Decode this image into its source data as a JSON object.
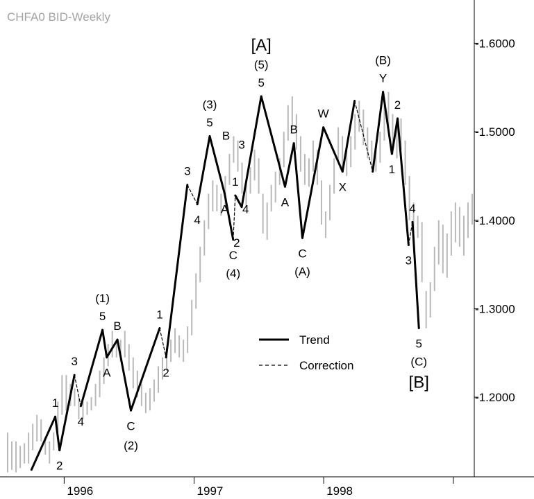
{
  "chart_data": {
    "type": "line",
    "title": "CHFA0 BID-Weekly",
    "xlabel": "",
    "ylabel": "",
    "x_axis": {
      "type": "date",
      "range": [
        "1995-07-20",
        "1999-03-01"
      ],
      "ticks": [
        {
          "label": "1996",
          "date": "1996-01-01"
        },
        {
          "label": "1997",
          "date": "1997-01-01"
        },
        {
          "label": "1998",
          "date": "1998-01-01"
        },
        {
          "label": "",
          "date": "1999-01-01"
        }
      ]
    },
    "y_axis": {
      "side": "right",
      "range": [
        1.11,
        1.645
      ],
      "ticks": [
        1.2,
        1.3,
        1.4,
        1.5,
        1.6
      ],
      "tick_labels": [
        "1.2000",
        "1.3000",
        "1.4000",
        "1.5000",
        "1.6000"
      ]
    },
    "grid": false,
    "legend": {
      "position": "bottom-center",
      "entries": [
        {
          "name": "Trend",
          "style": "solid"
        },
        {
          "name": "Correction",
          "style": "dashed"
        }
      ]
    },
    "colors": {
      "price_bars": "#b9b9b9",
      "wave_lines": "#000000",
      "text": "#000000",
      "title": "#a3a3a3"
    },
    "series": [
      {
        "name": "Trend",
        "style": "solid",
        "segments": [
          [
            [
              "1995-10-01",
              1.118
            ],
            [
              "1995-12-07",
              1.178
            ]
          ],
          [
            [
              "1995-12-07",
              1.178
            ],
            [
              "1995-12-19",
              1.14
            ]
          ],
          [
            [
              "1995-12-19",
              1.14
            ],
            [
              "1996-01-30",
              1.225
            ]
          ],
          [
            [
              "1996-02-17",
              1.19
            ],
            [
              "1996-04-18",
              1.276
            ]
          ],
          [
            [
              "1996-04-18",
              1.276
            ],
            [
              "1996-04-30",
              1.245
            ]
          ],
          [
            [
              "1996-04-30",
              1.245
            ],
            [
              "1996-05-30",
              1.265
            ]
          ],
          [
            [
              "1996-05-30",
              1.265
            ],
            [
              "1996-07-07",
              1.185
            ]
          ],
          [
            [
              "1996-07-07",
              1.185
            ],
            [
              "1996-09-26",
              1.278
            ]
          ],
          [
            [
              "1996-10-14",
              1.245
            ],
            [
              "1996-12-13",
              1.44
            ]
          ],
          [
            [
              "1997-01-10",
              1.418
            ],
            [
              "1997-02-14",
              1.495
            ]
          ],
          [
            [
              "1997-02-14",
              1.495
            ],
            [
              "1997-03-28",
              1.43
            ]
          ],
          [
            [
              "1997-03-28",
              1.43
            ],
            [
              "1997-04-21",
              1.378
            ]
          ],
          [
            [
              "1997-04-27",
              1.428
            ],
            [
              "1997-05-15",
              1.415
            ]
          ],
          [
            [
              "1997-05-15",
              1.415
            ],
            [
              "1997-07-09",
              1.54
            ]
          ],
          [
            [
              "1997-07-09",
              1.54
            ],
            [
              "1997-09-14",
              1.438
            ]
          ],
          [
            [
              "1997-09-14",
              1.438
            ],
            [
              "1997-10-09",
              1.487
            ]
          ],
          [
            [
              "1997-10-09",
              1.487
            ],
            [
              "1997-11-02",
              1.38
            ]
          ],
          [
            [
              "1997-11-02",
              1.38
            ],
            [
              "1997-12-31",
              1.505
            ]
          ],
          [
            [
              "1997-12-31",
              1.505
            ],
            [
              "1998-02-23",
              1.455
            ]
          ],
          [
            [
              "1998-02-23",
              1.455
            ],
            [
              "1998-03-29",
              1.535
            ]
          ],
          [
            [
              "1998-05-19",
              1.455
            ],
            [
              "1998-06-17",
              1.545
            ]
          ],
          [
            [
              "1998-06-17",
              1.545
            ],
            [
              "1998-07-12",
              1.475
            ]
          ],
          [
            [
              "1998-07-12",
              1.475
            ],
            [
              "1998-07-28",
              1.515
            ]
          ],
          [
            [
              "1998-07-28",
              1.515
            ],
            [
              "1998-08-28",
              1.372
            ]
          ],
          [
            [
              "1998-09-08",
              1.398
            ],
            [
              "1998-09-26",
              1.278
            ]
          ]
        ]
      },
      {
        "name": "Correction",
        "style": "dashed",
        "segments": [
          [
            [
              "1996-01-30",
              1.225
            ],
            [
              "1996-02-17",
              1.19
            ]
          ],
          [
            [
              "1996-09-26",
              1.278
            ],
            [
              "1996-10-14",
              1.245
            ]
          ],
          [
            [
              "1996-12-13",
              1.44
            ],
            [
              "1997-01-10",
              1.418
            ]
          ],
          [
            [
              "1997-04-21",
              1.378
            ],
            [
              "1997-04-27",
              1.428
            ]
          ],
          [
            [
              "1998-03-29",
              1.535
            ],
            [
              "1998-05-19",
              1.455
            ]
          ],
          [
            [
              "1998-08-28",
              1.372
            ],
            [
              "1998-09-08",
              1.398
            ]
          ]
        ]
      }
    ],
    "price_bars": [
      [
        1.16,
        1.115
      ],
      [
        1.15,
        1.118
      ],
      [
        1.15,
        1.115
      ],
      [
        1.145,
        1.12
      ],
      [
        1.148,
        1.125
      ],
      [
        1.16,
        1.125
      ],
      [
        1.17,
        1.14
      ],
      [
        1.18,
        1.15
      ],
      [
        1.175,
        1.15
      ],
      [
        1.155,
        1.135
      ],
      [
        1.15,
        1.125
      ],
      [
        1.16,
        1.14
      ],
      [
        1.195,
        1.16
      ],
      [
        1.225,
        1.18
      ],
      [
        1.225,
        1.185
      ],
      [
        1.215,
        1.19
      ],
      [
        1.21,
        1.19
      ],
      [
        1.2,
        1.175
      ],
      [
        1.195,
        1.175
      ],
      [
        1.195,
        1.18
      ],
      [
        1.2,
        1.185
      ],
      [
        1.215,
        1.19
      ],
      [
        1.23,
        1.2
      ],
      [
        1.245,
        1.215
      ],
      [
        1.26,
        1.235
      ],
      [
        1.275,
        1.245
      ],
      [
        1.265,
        1.245
      ],
      [
        1.265,
        1.24
      ],
      [
        1.275,
        1.245
      ],
      [
        1.26,
        1.23
      ],
      [
        1.245,
        1.21
      ],
      [
        1.23,
        1.2
      ],
      [
        1.215,
        1.19
      ],
      [
        1.205,
        1.182
      ],
      [
        1.21,
        1.185
      ],
      [
        1.22,
        1.195
      ],
      [
        1.235,
        1.205
      ],
      [
        1.245,
        1.22
      ],
      [
        1.255,
        1.23
      ],
      [
        1.265,
        1.24
      ],
      [
        1.278,
        1.25
      ],
      [
        1.27,
        1.245
      ],
      [
        1.265,
        1.24
      ],
      [
        1.28,
        1.25
      ],
      [
        1.31,
        1.27
      ],
      [
        1.34,
        1.3
      ],
      [
        1.37,
        1.33
      ],
      [
        1.4,
        1.36
      ],
      [
        1.43,
        1.39
      ],
      [
        1.445,
        1.41
      ],
      [
        1.44,
        1.41
      ],
      [
        1.43,
        1.405
      ],
      [
        1.45,
        1.415
      ],
      [
        1.475,
        1.44
      ],
      [
        1.495,
        1.465
      ],
      [
        1.49,
        1.455
      ],
      [
        1.465,
        1.43
      ],
      [
        1.445,
        1.415
      ],
      [
        1.46,
        1.43
      ],
      [
        1.48,
        1.445
      ],
      [
        1.47,
        1.43
      ],
      [
        1.43,
        1.385
      ],
      [
        1.42,
        1.378
      ],
      [
        1.44,
        1.41
      ],
      [
        1.455,
        1.42
      ],
      [
        1.47,
        1.44
      ],
      [
        1.5,
        1.46
      ],
      [
        1.53,
        1.49
      ],
      [
        1.54,
        1.505
      ],
      [
        1.52,
        1.48
      ],
      [
        1.495,
        1.455
      ],
      [
        1.475,
        1.44
      ],
      [
        1.47,
        1.438
      ],
      [
        1.49,
        1.455
      ],
      [
        1.48,
        1.44
      ],
      [
        1.445,
        1.395
      ],
      [
        1.41,
        1.38
      ],
      [
        1.44,
        1.4
      ],
      [
        1.47,
        1.43
      ],
      [
        1.505,
        1.465
      ],
      [
        1.495,
        1.455
      ],
      [
        1.485,
        1.45
      ],
      [
        1.495,
        1.46
      ],
      [
        1.52,
        1.48
      ],
      [
        1.535,
        1.5
      ],
      [
        1.525,
        1.485
      ],
      [
        1.505,
        1.47
      ],
      [
        1.49,
        1.46
      ],
      [
        1.48,
        1.455
      ],
      [
        1.5,
        1.465
      ],
      [
        1.53,
        1.49
      ],
      [
        1.545,
        1.505
      ],
      [
        1.52,
        1.475
      ],
      [
        1.505,
        1.47
      ],
      [
        1.515,
        1.48
      ],
      [
        1.49,
        1.44
      ],
      [
        1.45,
        1.4
      ],
      [
        1.42,
        1.372
      ],
      [
        1.405,
        1.38
      ],
      [
        1.398,
        1.33
      ],
      [
        1.32,
        1.278
      ],
      [
        1.33,
        1.29
      ],
      [
        1.37,
        1.32
      ],
      [
        1.4,
        1.35
      ],
      [
        1.395,
        1.34
      ],
      [
        1.385,
        1.335
      ],
      [
        1.41,
        1.36
      ],
      [
        1.42,
        1.375
      ],
      [
        1.415,
        1.37
      ],
      [
        1.405,
        1.36
      ],
      [
        1.42,
        1.38
      ],
      [
        1.43,
        1.395
      ]
    ],
    "annotations": [
      {
        "id": "big-a",
        "text": "[A]",
        "x": "1997-07-09",
        "y": 1.54,
        "pos": "above",
        "lines": [
          "(5)",
          "5"
        ]
      },
      {
        "id": "a5",
        "text": "",
        "x": "1997-07-09",
        "y": 1.54
      },
      {
        "label": "1",
        "date": "1995-12-07",
        "price": 1.178,
        "pos": "above"
      },
      {
        "label": "2",
        "date": "1995-12-19",
        "price": 1.14,
        "pos": "below"
      },
      {
        "label": "3",
        "date": "1996-01-30",
        "price": 1.225,
        "pos": "above"
      },
      {
        "label": "4",
        "date": "1996-02-17",
        "price": 1.19,
        "pos": "below"
      },
      {
        "label": "A",
        "date": "1996-04-30",
        "price": 1.245,
        "pos": "below"
      },
      {
        "label": "B",
        "date": "1996-05-30",
        "price": 1.265,
        "pos": "above"
      },
      {
        "label": "C",
        "date": "1996-07-07",
        "price": 1.185,
        "pos": "below"
      },
      {
        "label": "1",
        "date": "1996-09-26",
        "price": 1.278,
        "pos": "above"
      },
      {
        "label": "2",
        "date": "1996-10-14",
        "price": 1.245,
        "pos": "below"
      },
      {
        "label": "3",
        "date": "1996-12-13",
        "price": 1.44,
        "pos": "above"
      },
      {
        "label": "4",
        "date": "1997-01-10",
        "price": 1.418,
        "pos": "below"
      },
      {
        "label": "A",
        "date": "1997-03-28",
        "price": 1.43,
        "pos": "below"
      },
      {
        "label": "B",
        "date": "1997-04-01",
        "price": 1.48,
        "pos": "above"
      },
      {
        "label": "1",
        "date": "1997-04-27",
        "price": 1.428,
        "pos": "above"
      },
      {
        "label": "2",
        "date": "1997-05-01",
        "price": 1.392,
        "pos": "below"
      },
      {
        "label": "3",
        "date": "1997-05-15",
        "price": 1.47,
        "pos": "above"
      },
      {
        "label": "4",
        "date": "1997-05-26",
        "price": 1.43,
        "pos": "below"
      },
      {
        "label": "A",
        "date": "1997-09-14",
        "price": 1.438,
        "pos": "below"
      },
      {
        "label": "B",
        "date": "1997-10-09",
        "price": 1.487,
        "pos": "above"
      },
      {
        "label": "W",
        "date": "1997-12-31",
        "price": 1.505,
        "pos": "above"
      },
      {
        "label": "X",
        "date": "1998-02-23",
        "price": 1.455,
        "pos": "below"
      },
      {
        "label": "1",
        "date": "1998-07-12",
        "price": 1.475,
        "pos": "below"
      },
      {
        "label": "2",
        "date": "1998-07-28",
        "price": 1.515,
        "pos": "above"
      },
      {
        "label": "3",
        "date": "1998-08-28",
        "price": 1.372,
        "pos": "below"
      },
      {
        "label": "4",
        "date": "1998-09-08",
        "price": 1.398,
        "pos": "above"
      }
    ],
    "wave_labels": [
      {
        "lines": [
          "(1)",
          "5"
        ],
        "date": "1996-04-18",
        "price": 1.276,
        "pos": "above"
      },
      {
        "lines": [
          "(2)"
        ],
        "date": "1996-07-07",
        "price": 1.185,
        "pos": "below2"
      },
      {
        "lines": [
          "(3)",
          "5"
        ],
        "date": "1997-02-14",
        "price": 1.495,
        "pos": "above"
      },
      {
        "lines": [
          "C",
          "(4)"
        ],
        "date": "1997-04-21",
        "price": 1.378,
        "pos": "below"
      },
      {
        "lines": [
          "[A]",
          "(5)",
          "5"
        ],
        "date": "1997-07-09",
        "price": 1.54,
        "pos": "above"
      },
      {
        "lines": [
          "C",
          "(A)"
        ],
        "date": "1997-11-02",
        "price": 1.38,
        "pos": "below"
      },
      {
        "lines": [
          "(B)",
          "Y"
        ],
        "date": "1998-06-17",
        "price": 1.545,
        "pos": "above"
      },
      {
        "lines": [
          "5",
          "(C)",
          "[B]"
        ],
        "date": "1998-09-26",
        "price": 1.278,
        "pos": "below"
      }
    ]
  }
}
